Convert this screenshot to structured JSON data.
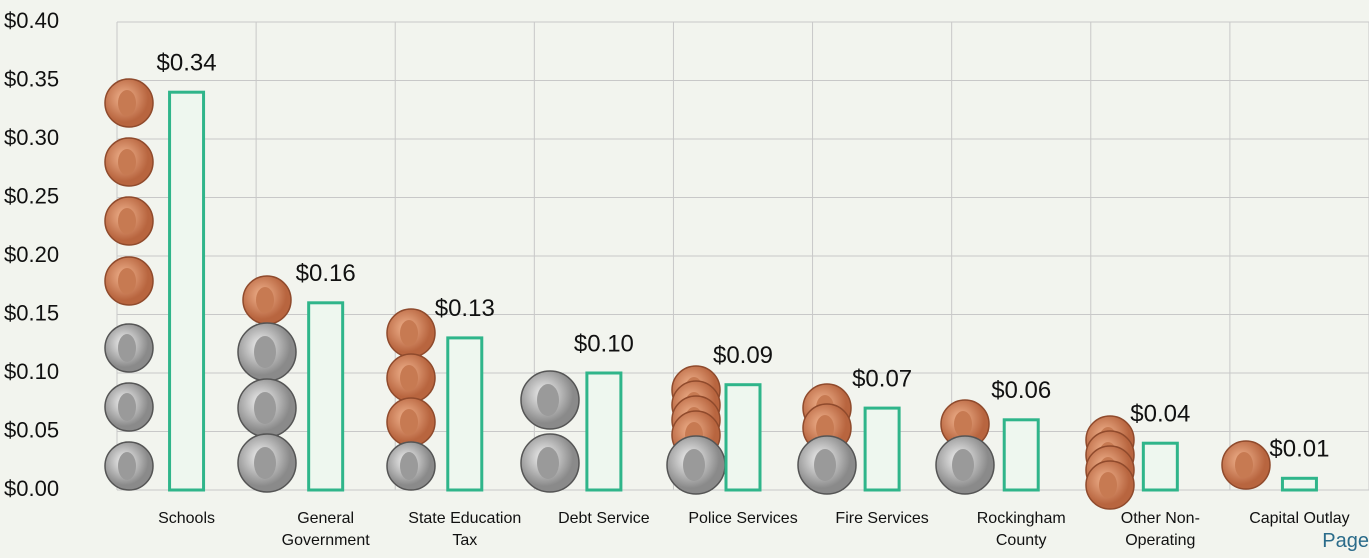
{
  "chart_data": {
    "type": "bar",
    "categories": [
      "Schools",
      "General Government",
      "State Education Tax",
      "Debt Service",
      "Police Services",
      "Fire Services",
      "Rockingham County",
      "Other Non-Operating",
      "Capital Outlay"
    ],
    "values": [
      0.34,
      0.16,
      0.13,
      0.1,
      0.09,
      0.07,
      0.06,
      0.04,
      0.01
    ],
    "value_labels": [
      "$0.34",
      "$0.16",
      "$0.13",
      "$0.10",
      "$0.09",
      "$0.07",
      "$0.06",
      "$0.04",
      "$0.01"
    ],
    "color": "#2fb58a",
    "ylim": [
      0,
      0.4
    ],
    "yticks": [
      {
        "value": 0,
        "label": "$0.00"
      },
      {
        "value": 0.05,
        "label": "$0.05"
      },
      {
        "value": 0.1,
        "label": "$0.10"
      },
      {
        "value": 0.15,
        "label": "$0.15"
      },
      {
        "value": 0.2,
        "label": "$0.20"
      },
      {
        "value": 0.25,
        "label": "$0.25"
      },
      {
        "value": 0.3,
        "label": "$0.30"
      },
      {
        "value": 0.35,
        "label": "$0.35"
      },
      {
        "value": 0.4,
        "label": "$0.40"
      }
    ],
    "grid": true
  },
  "page_label": "Page"
}
